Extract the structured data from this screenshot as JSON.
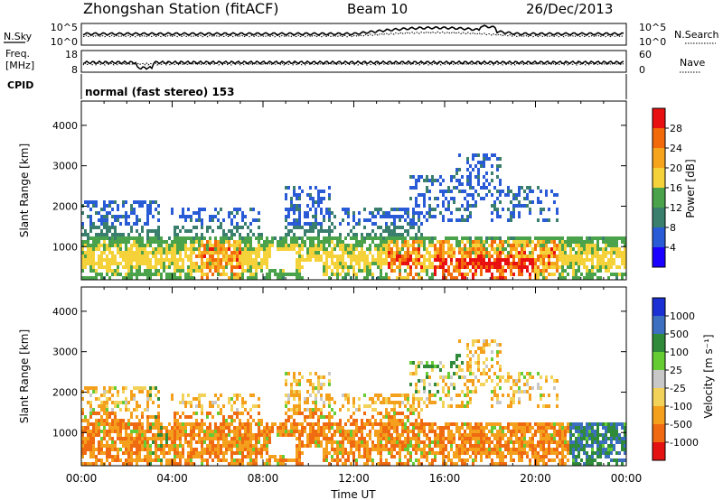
{
  "header": {
    "station": "Zhongshan Station (fitACF)",
    "beam": "Beam 10",
    "date": "26/Dec/2013"
  },
  "noise_panel": {
    "left_label": "N.Sky",
    "right_label": "N.Search",
    "left_ticks": [
      "10^5",
      "10^0"
    ],
    "right_ticks": [
      "10^5",
      "10^0"
    ]
  },
  "freq_panel": {
    "left_label_line1": "Freq.",
    "left_label_line2": "[MHz]",
    "right_label": "Nave",
    "left_ticks": [
      "18",
      "8"
    ],
    "right_ticks": [
      "60",
      "0"
    ]
  },
  "cpid_panel": {
    "label": "CPID",
    "mode_text": "normal (fast stereo) 153"
  },
  "chart_data": [
    {
      "type": "heatmap",
      "name": "power",
      "ylabel": "Slant Range [km]",
      "y_ticks": [
        "1000",
        "2000",
        "3000",
        "4000"
      ],
      "ylim": [
        180,
        4600
      ],
      "xlim": [
        0,
        24
      ],
      "colorbar": {
        "label": "Power [dB]",
        "ticks": [
          "4",
          "8",
          "12",
          "16",
          "20",
          "24",
          "28"
        ],
        "colors": [
          "#1a00ff",
          "#2a5bd7",
          "#3a7f6e",
          "#4aa34a",
          "#f6d23a",
          "#f7a41d",
          "#f36a0b",
          "#e81010"
        ]
      }
    },
    {
      "type": "heatmap",
      "name": "velocity",
      "ylabel": "Slant Range [km]",
      "y_ticks": [
        "1000",
        "2000",
        "3000",
        "4000"
      ],
      "ylim": [
        180,
        4600
      ],
      "xlim": [
        0,
        24
      ],
      "xlabel": "Time UT",
      "x_ticks": [
        "00:00",
        "04:00",
        "08:00",
        "12:00",
        "16:00",
        "20:00",
        "00:00"
      ],
      "colorbar": {
        "label": "Velocity [m s⁻¹]",
        "ticks": [
          "1000",
          "500",
          "100",
          "25",
          "-25",
          "-100",
          "-500",
          "-1000"
        ],
        "colors": [
          "#1a2fd4",
          "#3d6fc1",
          "#2f8a3a",
          "#66cc33",
          "#c8c8c8",
          "#f3d25a",
          "#f4a01c",
          "#ef6a10",
          "#e51212"
        ]
      }
    }
  ]
}
